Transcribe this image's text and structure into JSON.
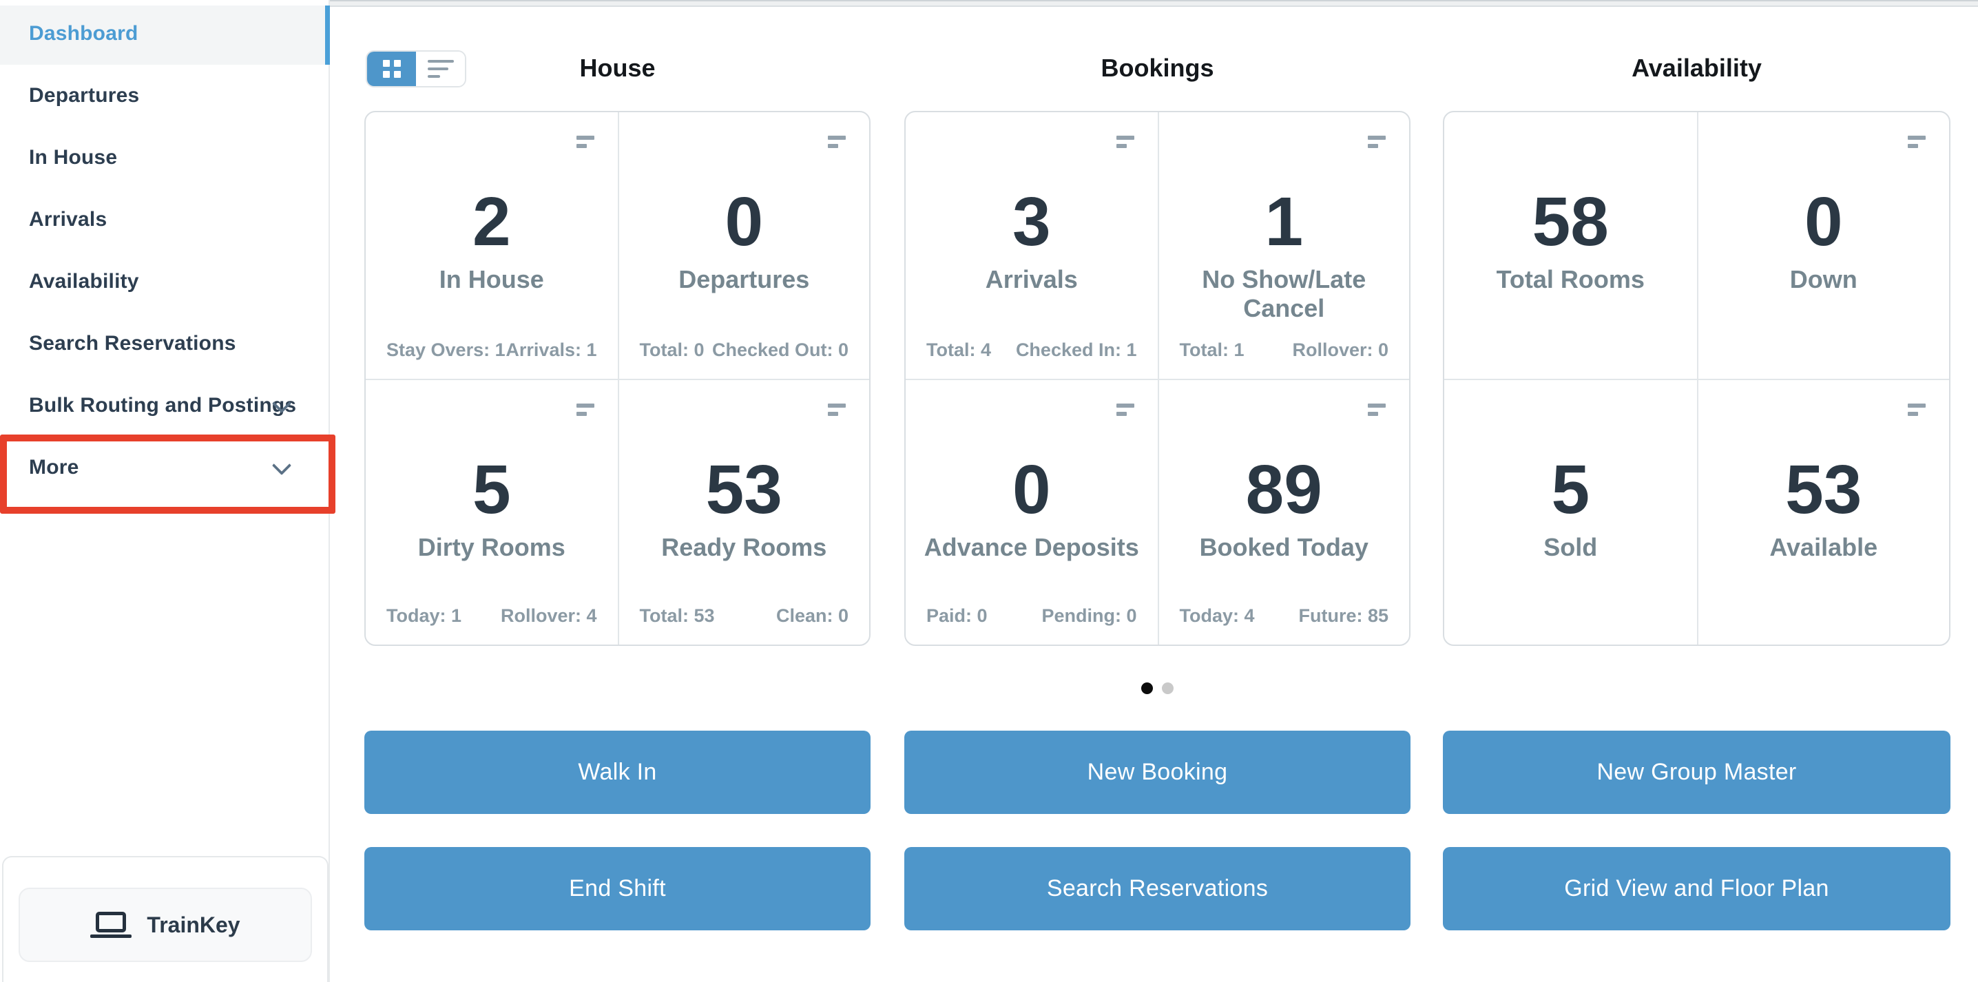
{
  "sidebar": {
    "items": [
      {
        "label": "Dashboard",
        "active": true
      },
      {
        "label": "Departures"
      },
      {
        "label": "In House"
      },
      {
        "label": "Arrivals"
      },
      {
        "label": "Availability"
      },
      {
        "label": "Search Reservations"
      },
      {
        "label": "Bulk Routing and Postings",
        "expandable": true
      },
      {
        "label": "More",
        "expandable": true,
        "highlighted": true
      }
    ],
    "trainkey": {
      "label": "TrainKey",
      "icon": "laptop-icon"
    }
  },
  "view_toggle": {
    "active": "grid",
    "grid_icon": "grid-view-icon",
    "list_icon": "list-view-icon"
  },
  "columns": [
    {
      "title": "House",
      "cells": [
        {
          "value": "2",
          "label": "In House",
          "stat_left": "Stay Overs: 1",
          "stat_right": "Arrivals: 1"
        },
        {
          "value": "0",
          "label": "Departures",
          "stat_left": "Total: 0",
          "stat_right": "Checked Out: 0"
        },
        {
          "value": "5",
          "label": "Dirty Rooms",
          "stat_left": "Today: 1",
          "stat_right": "Rollover: 4"
        },
        {
          "value": "53",
          "label": "Ready Rooms",
          "stat_left": "Total: 53",
          "stat_right": "Clean: 0"
        }
      ]
    },
    {
      "title": "Bookings",
      "cells": [
        {
          "value": "3",
          "label": "Arrivals",
          "stat_left": "Total: 4",
          "stat_right": "Checked In: 1"
        },
        {
          "value": "1",
          "label": "No Show/Late Cancel",
          "stat_left": "Total: 1",
          "stat_right": "Rollover: 0"
        },
        {
          "value": "0",
          "label": "Advance Deposits",
          "stat_left": "Paid: 0",
          "stat_right": "Pending: 0"
        },
        {
          "value": "89",
          "label": "Booked Today",
          "stat_left": "Today: 4",
          "stat_right": "Future: 85"
        }
      ]
    },
    {
      "title": "Availability",
      "cells": [
        {
          "value": "58",
          "label": "Total Rooms"
        },
        {
          "value": "0",
          "label": "Down"
        },
        {
          "value": "5",
          "label": "Sold"
        },
        {
          "value": "53",
          "label": "Available"
        }
      ]
    }
  ],
  "pagination": {
    "count": 2,
    "active_index": 0
  },
  "actions": {
    "walk_in": "Walk In",
    "new_booking": "New Booking",
    "new_group_master": "New Group Master",
    "end_shift": "End Shift",
    "search_reservations": "Search Reservations",
    "grid_view_floor_plan": "Grid View and Floor Plan"
  },
  "colors": {
    "accent_blue": "#4e96ca",
    "active_link_blue": "#4c9cd3",
    "annotation_red": "#e7402b",
    "number_dark": "#2b3844",
    "label_gray": "#75868f",
    "stat_gray": "#8b9aa4"
  }
}
